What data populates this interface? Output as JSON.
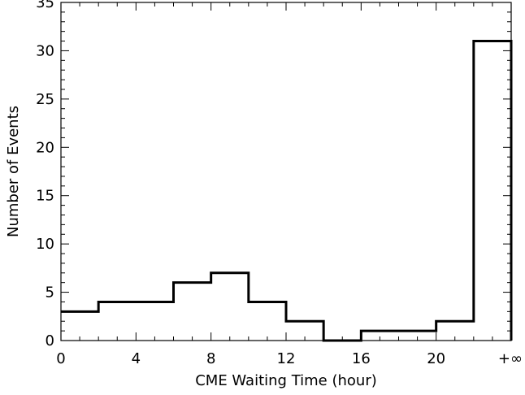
{
  "chart_data": {
    "type": "histogram",
    "title": "",
    "xlabel": "CME Waiting Time (hour)",
    "ylabel": "Number of Events",
    "xlim": [
      0,
      24
    ],
    "ylim": [
      0,
      35
    ],
    "x_ticks": [
      {
        "value": 0,
        "label": "0"
      },
      {
        "value": 4,
        "label": "4"
      },
      {
        "value": 8,
        "label": "8"
      },
      {
        "value": 12,
        "label": "12"
      },
      {
        "value": 16,
        "label": "16"
      },
      {
        "value": 20,
        "label": "20"
      },
      {
        "value": 24,
        "label": "+∞"
      }
    ],
    "y_ticks": [
      {
        "value": 0,
        "label": "0"
      },
      {
        "value": 5,
        "label": "5"
      },
      {
        "value": 10,
        "label": "10"
      },
      {
        "value": 15,
        "label": "15"
      },
      {
        "value": 20,
        "label": "20"
      },
      {
        "value": 25,
        "label": "25"
      },
      {
        "value": 30,
        "label": "30"
      },
      {
        "value": 35,
        "label": "35"
      }
    ],
    "bin_edges": [
      0,
      2,
      4,
      6,
      8,
      10,
      12,
      14,
      16,
      18,
      20,
      22,
      24
    ],
    "counts": [
      3,
      4,
      4,
      6,
      7,
      4,
      2,
      0,
      1,
      1,
      2,
      31
    ],
    "last_bin_label": "+∞",
    "grid": false,
    "line_color": "#000000"
  }
}
